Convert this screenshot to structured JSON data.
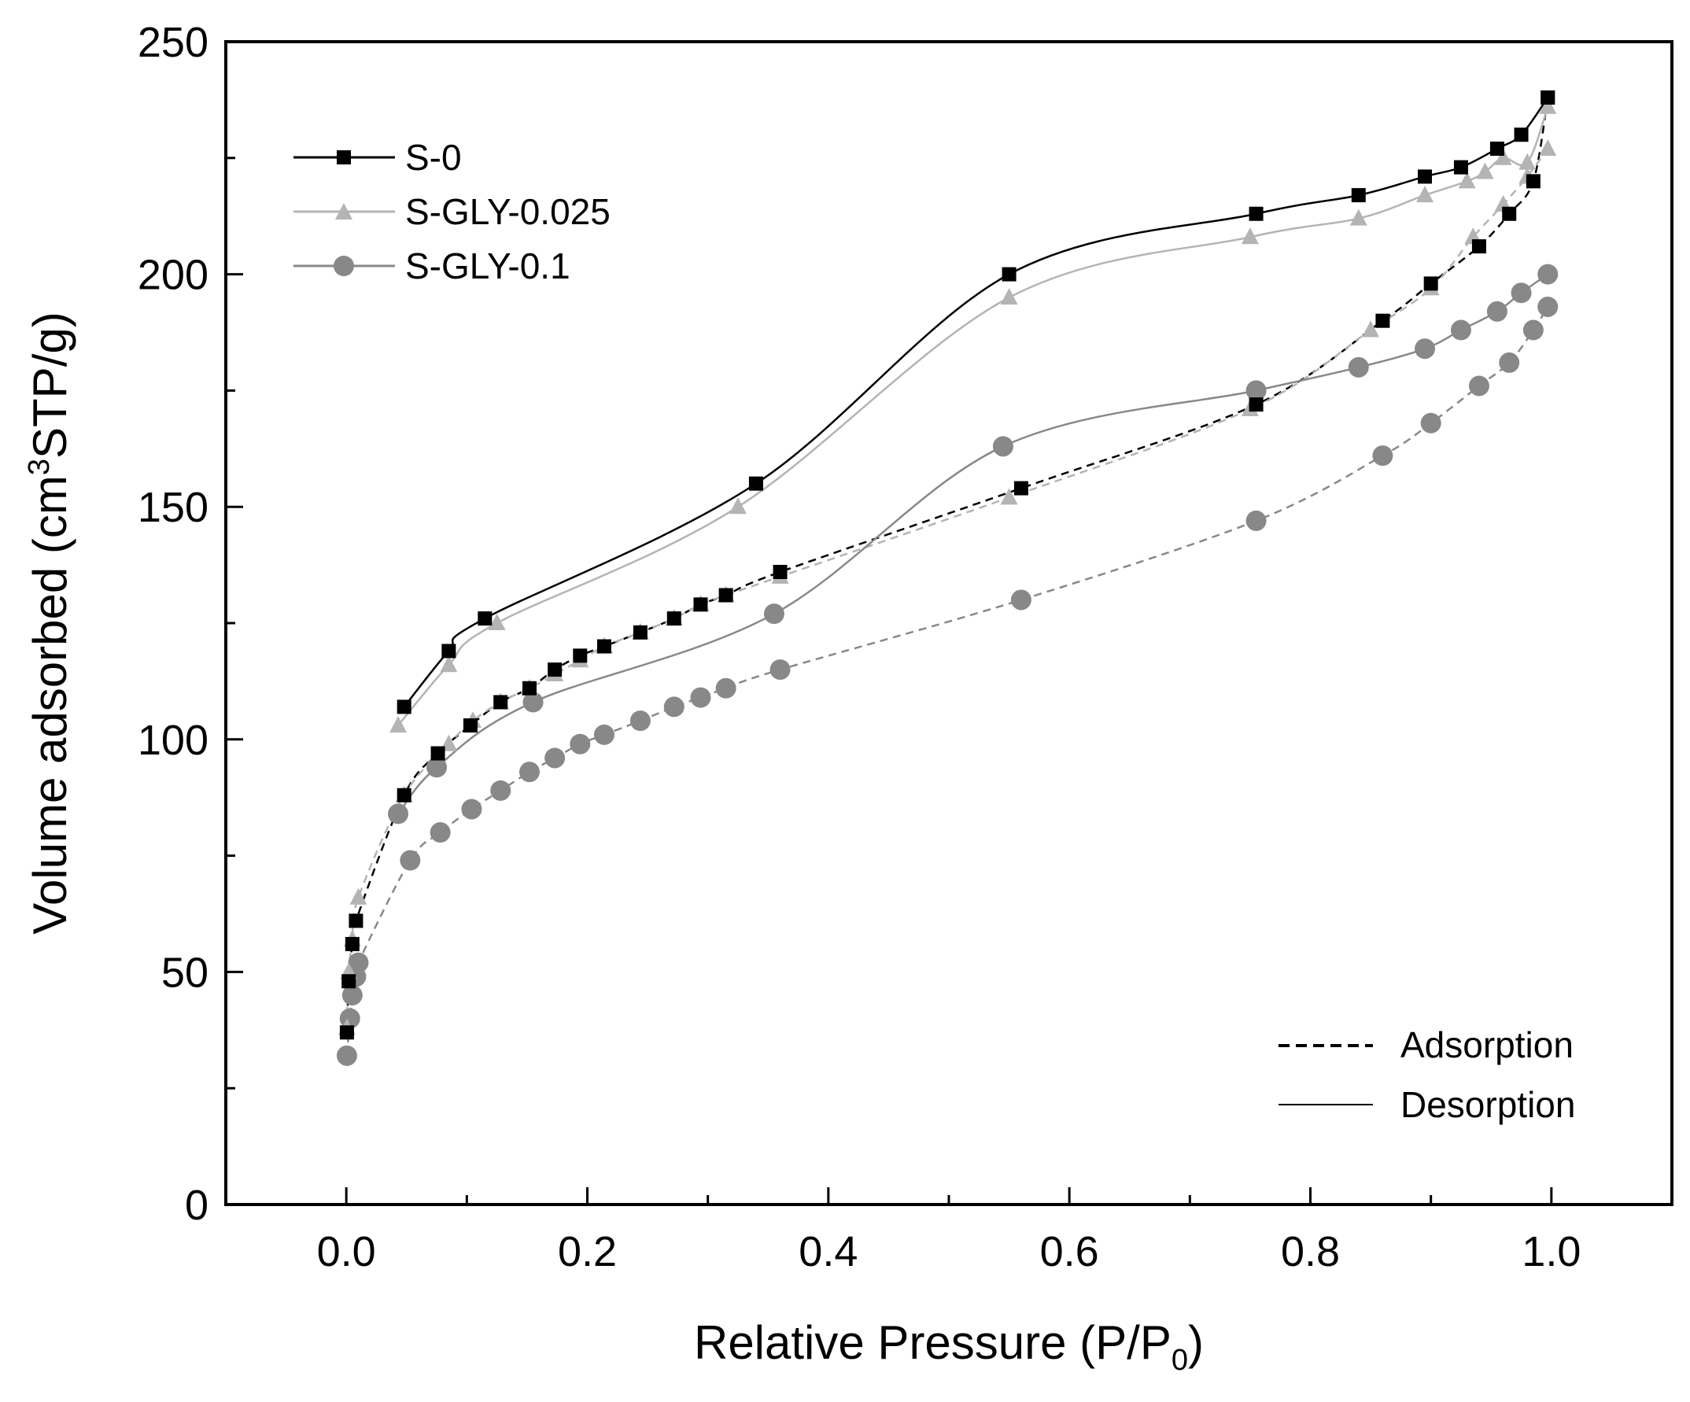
{
  "chart_data": {
    "type": "line",
    "title": "",
    "xlabel": "Relative Pressure (P/P",
    "xlabel_sub": "0",
    "xlabel_close": ")",
    "ylabel": "Volume adsorbed (cm",
    "ylabel_sup": "3",
    "ylabel_rest": "STP/g)",
    "xlim": [
      -0.1,
      1.1
    ],
    "ylim": [
      0,
      250
    ],
    "xticks": [
      "0.0",
      "0.2",
      "0.4",
      "0.6",
      "0.8",
      "1.0"
    ],
    "yticks": [
      "0",
      "50",
      "100",
      "150",
      "200",
      "250"
    ],
    "legend_position": "top-left",
    "series": [
      {
        "name": "S-0",
        "color": "#000000",
        "marker": "square",
        "adsorption": {
          "x": [
            0.0005,
            0.002,
            0.005,
            0.008,
            0.048,
            0.076,
            0.103,
            0.128,
            0.152,
            0.173,
            0.194,
            0.214,
            0.244,
            0.272,
            0.294,
            0.315,
            0.36,
            0.56,
            0.755,
            0.86,
            0.9,
            0.94,
            0.965,
            0.985,
            0.997
          ],
          "y": [
            37,
            48,
            56,
            61,
            88,
            97,
            103,
            108,
            111,
            115,
            118,
            120,
            123,
            126,
            129,
            131,
            136,
            154,
            172,
            190,
            198,
            206,
            213,
            220,
            238
          ]
        },
        "desorption": {
          "x": [
            0.997,
            0.975,
            0.955,
            0.925,
            0.895,
            0.84,
            0.755,
            0.55,
            0.34,
            0.115,
            0.085,
            0.048
          ],
          "y": [
            238,
            230,
            227,
            223,
            221,
            217,
            213,
            200,
            155,
            126,
            119,
            107
          ]
        }
      },
      {
        "name": "S-GLY-0.025",
        "color": "#b4b4b4",
        "marker": "triangle",
        "adsorption": {
          "x": [
            0.0005,
            0.002,
            0.005,
            0.01,
            0.048,
            0.085,
            0.105,
            0.128,
            0.152,
            0.173,
            0.194,
            0.214,
            0.244,
            0.272,
            0.294,
            0.315,
            0.36,
            0.55,
            0.75,
            0.85,
            0.9,
            0.935,
            0.96,
            0.98,
            0.997
          ],
          "y": [
            38,
            50,
            57,
            66,
            88,
            99,
            104,
            108,
            111,
            114,
            117,
            120,
            123,
            126,
            129,
            131,
            135,
            152,
            171,
            188,
            197,
            208,
            215,
            221,
            227
          ]
        },
        "desorption": {
          "x": [
            0.997,
            0.98,
            0.96,
            0.945,
            0.93,
            0.895,
            0.84,
            0.75,
            0.55,
            0.325,
            0.125,
            0.085,
            0.043
          ],
          "y": [
            236,
            224,
            225,
            222,
            220,
            217,
            212,
            208,
            195,
            150,
            125,
            116,
            103
          ]
        }
      },
      {
        "name": "S-GLY-0.1",
        "color": "#888888",
        "marker": "circle",
        "adsorption": {
          "x": [
            0.0005,
            0.003,
            0.005,
            0.008,
            0.01,
            0.053,
            0.078,
            0.104,
            0.128,
            0.152,
            0.173,
            0.194,
            0.214,
            0.244,
            0.272,
            0.294,
            0.315,
            0.36,
            0.56,
            0.755,
            0.86,
            0.9,
            0.94,
            0.965,
            0.985,
            0.997
          ],
          "y": [
            32,
            40,
            45,
            49,
            52,
            74,
            80,
            85,
            89,
            93,
            96,
            99,
            101,
            104,
            107,
            109,
            111,
            115,
            130,
            147,
            161,
            168,
            176,
            181,
            188,
            193
          ]
        },
        "desorption": {
          "x": [
            0.997,
            0.975,
            0.955,
            0.925,
            0.895,
            0.84,
            0.755,
            0.545,
            0.355,
            0.155,
            0.075,
            0.043
          ],
          "y": [
            200,
            196,
            192,
            188,
            184,
            180,
            175,
            163,
            127,
            108,
            94,
            84
          ]
        }
      }
    ],
    "line_legend": [
      {
        "label": "Adsorption",
        "style": "dashed"
      },
      {
        "label": "Desorption",
        "style": "solid"
      }
    ]
  }
}
